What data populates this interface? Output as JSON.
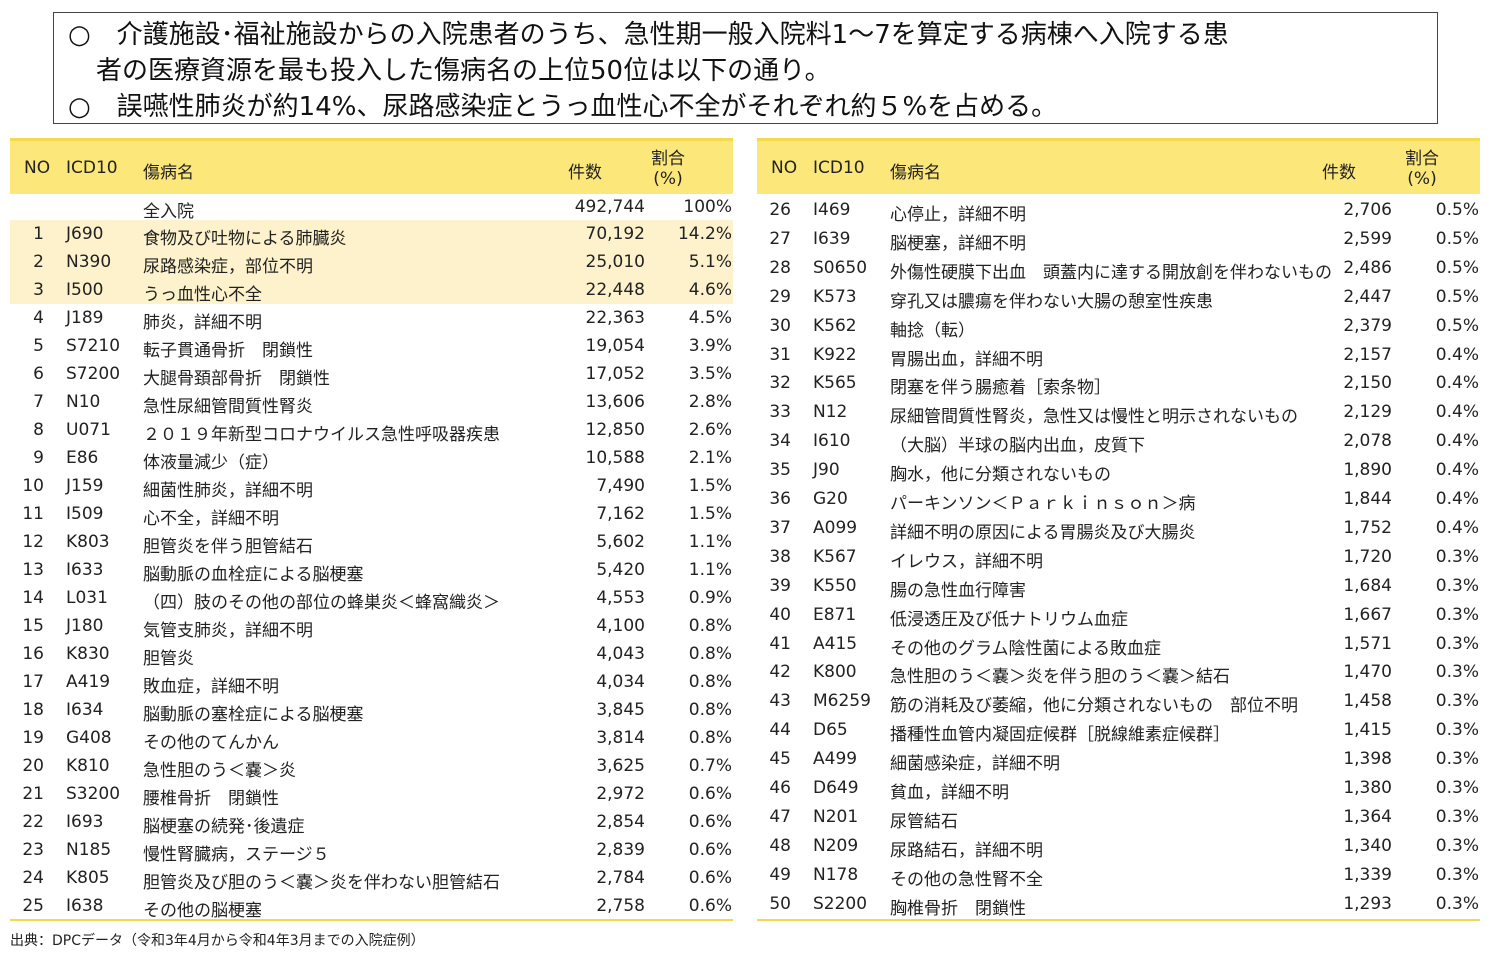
{
  "title": {
    "line1": "○　介護施設･福祉施設からの入院患者のうち、急性期一般入院料1～7を算定する病棟へ入院する患",
    "line1b": "者の医療資源を最も投入した傷病名の上位50位は以下の通り。",
    "line2": "○　誤嚥性肺炎が約14%、尿路感染症とうっ血性心不全がそれぞれ約５%を占める。"
  },
  "headers": {
    "no": "NO",
    "icd": "ICD10",
    "name": "傷病名",
    "count": "件数",
    "pct1": "割合",
    "pct2": "(%)"
  },
  "total": {
    "name": "全入院",
    "count": "492,744",
    "pct": "100%"
  },
  "rows": [
    [
      "1",
      "J690",
      "食物及び吐物による肺臓炎",
      "70,192",
      "14.2%"
    ],
    [
      "2",
      "N390",
      "尿路感染症，部位不明",
      "25,010",
      "5.1%"
    ],
    [
      "3",
      "I500",
      "うっ血性心不全",
      "22,448",
      "4.6%"
    ],
    [
      "4",
      "J189",
      "肺炎，詳細不明",
      "22,363",
      "4.5%"
    ],
    [
      "5",
      "S7210",
      "転子貫通骨折　閉鎖性",
      "19,054",
      "3.9%"
    ],
    [
      "6",
      "S7200",
      "大腿骨頚部骨折　閉鎖性",
      "17,052",
      "3.5%"
    ],
    [
      "7",
      "N10",
      "急性尿細管間質性腎炎",
      "13,606",
      "2.8%"
    ],
    [
      "8",
      "U071",
      "２０１９年新型コロナウイルス急性呼吸器疾患",
      "12,850",
      "2.6%"
    ],
    [
      "9",
      "E86",
      "体液量減少（症）",
      "10,588",
      "2.1%"
    ],
    [
      "10",
      "J159",
      "細菌性肺炎，詳細不明",
      "7,490",
      "1.5%"
    ],
    [
      "11",
      "I509",
      "心不全，詳細不明",
      "7,162",
      "1.5%"
    ],
    [
      "12",
      "K803",
      "胆管炎を伴う胆管結石",
      "5,602",
      "1.1%"
    ],
    [
      "13",
      "I633",
      "脳動脈の血栓症による脳梗塞",
      "5,420",
      "1.1%"
    ],
    [
      "14",
      "L031",
      "（四）肢のその他の部位の蜂巣炎＜蜂窩織炎＞",
      "4,553",
      "0.9%"
    ],
    [
      "15",
      "J180",
      "気管支肺炎，詳細不明",
      "4,100",
      "0.8%"
    ],
    [
      "16",
      "K830",
      "胆管炎",
      "4,043",
      "0.8%"
    ],
    [
      "17",
      "A419",
      "敗血症，詳細不明",
      "4,034",
      "0.8%"
    ],
    [
      "18",
      "I634",
      "脳動脈の塞栓症による脳梗塞",
      "3,845",
      "0.8%"
    ],
    [
      "19",
      "G408",
      "その他のてんかん",
      "3,814",
      "0.8%"
    ],
    [
      "20",
      "K810",
      "急性胆のう＜嚢＞炎",
      "3,625",
      "0.7%"
    ],
    [
      "21",
      "S3200",
      "腰椎骨折　閉鎖性",
      "2,972",
      "0.6%"
    ],
    [
      "22",
      "I693",
      "脳梗塞の続発･後遺症",
      "2,854",
      "0.6%"
    ],
    [
      "23",
      "N185",
      "慢性腎臓病，ステージ５",
      "2,839",
      "0.6%"
    ],
    [
      "24",
      "K805",
      "胆管炎及び胆のう＜嚢＞炎を伴わない胆管結石",
      "2,784",
      "0.6%"
    ],
    [
      "25",
      "I638",
      "その他の脳梗塞",
      "2,758",
      "0.6%"
    ],
    [
      "26",
      "I469",
      "心停止，詳細不明",
      "2,706",
      "0.5%"
    ],
    [
      "27",
      "I639",
      "脳梗塞，詳細不明",
      "2,599",
      "0.5%"
    ],
    [
      "28",
      "S0650",
      "外傷性硬膜下出血　頭蓋内に達する開放創を伴わないもの",
      "2,486",
      "0.5%"
    ],
    [
      "29",
      "K573",
      "穿孔又は膿瘍を伴わない大腸の憩室性疾患",
      "2,447",
      "0.5%"
    ],
    [
      "30",
      "K562",
      "軸捻（転）",
      "2,379",
      "0.5%"
    ],
    [
      "31",
      "K922",
      "胃腸出血，詳細不明",
      "2,157",
      "0.4%"
    ],
    [
      "32",
      "K565",
      "閉塞を伴う腸癒着［索条物］",
      "2,150",
      "0.4%"
    ],
    [
      "33",
      "N12",
      "尿細管間質性腎炎，急性又は慢性と明示されないもの",
      "2,129",
      "0.4%"
    ],
    [
      "34",
      "I610",
      "（大脳）半球の脳内出血，皮質下",
      "2,078",
      "0.4%"
    ],
    [
      "35",
      "J90",
      "胸水，他に分類されないもの",
      "1,890",
      "0.4%"
    ],
    [
      "36",
      "G20",
      "パーキンソン＜Ｐａｒｋｉｎｓｏｎ＞病",
      "1,844",
      "0.4%"
    ],
    [
      "37",
      "A099",
      "詳細不明の原因による胃腸炎及び大腸炎",
      "1,752",
      "0.4%"
    ],
    [
      "38",
      "K567",
      "イレウス，詳細不明",
      "1,720",
      "0.3%"
    ],
    [
      "39",
      "K550",
      "腸の急性血行障害",
      "1,684",
      "0.3%"
    ],
    [
      "40",
      "E871",
      "低浸透圧及び低ナトリウム血症",
      "1,667",
      "0.3%"
    ],
    [
      "41",
      "A415",
      "その他のグラム陰性菌による敗血症",
      "1,571",
      "0.3%"
    ],
    [
      "42",
      "K800",
      "急性胆のう＜嚢＞炎を伴う胆のう＜嚢＞結石",
      "1,470",
      "0.3%"
    ],
    [
      "43",
      "M6259",
      "筋の消耗及び萎縮，他に分類されないもの　部位不明",
      "1,458",
      "0.3%"
    ],
    [
      "44",
      "D65",
      "播種性血管内凝固症候群［脱線維素症候群］",
      "1,415",
      "0.3%"
    ],
    [
      "45",
      "A499",
      "細菌感染症，詳細不明",
      "1,398",
      "0.3%"
    ],
    [
      "46",
      "D649",
      "貧血，詳細不明",
      "1,380",
      "0.3%"
    ],
    [
      "47",
      "N201",
      "尿管結石",
      "1,364",
      "0.3%"
    ],
    [
      "48",
      "N209",
      "尿路結石，詳細不明",
      "1,340",
      "0.3%"
    ],
    [
      "49",
      "N178",
      "その他の急性腎不全",
      "1,339",
      "0.3%"
    ],
    [
      "50",
      "S2200",
      "胸椎骨折　閉鎖性",
      "1,293",
      "0.3%"
    ]
  ],
  "footer": "出典：DPCデータ（令和3年4月から令和4年3月までの入院症例）",
  "colors": {
    "header": "#fce77a",
    "highlight": "#fdf2cc"
  }
}
